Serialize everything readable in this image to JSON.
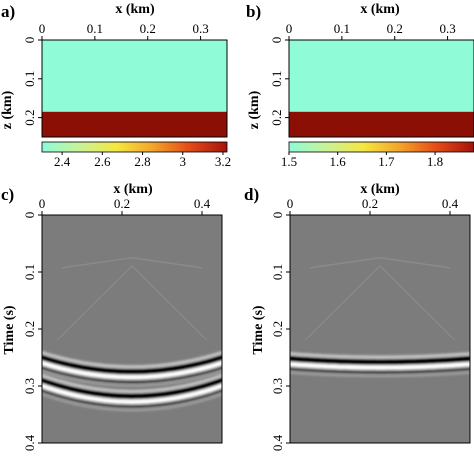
{
  "chart_data": [
    {
      "panel_label": "a)",
      "type": "heatmap",
      "xlabel": "x (km)",
      "ylabel": "z (km)",
      "xticks": [
        "0",
        "0.1",
        "0.2",
        "0.3"
      ],
      "xtick_values": [
        0,
        0.1,
        0.2,
        0.3
      ],
      "yticks": [
        "0",
        "0.1",
        "0.2"
      ],
      "ytick_values": [
        0,
        0.1,
        0.2
      ],
      "xlim": [
        0,
        0.35
      ],
      "ylim": [
        0,
        0.25
      ],
      "layers": [
        {
          "z_top": 0,
          "z_bottom": 0.185,
          "value": 2.3,
          "color": "#8ffbd7"
        },
        {
          "z_top": 0.185,
          "z_bottom": 0.25,
          "value": 3.2,
          "color": "#8c0f06"
        }
      ],
      "colorbar": {
        "range": [
          2.3,
          3.22
        ],
        "ticks": [
          "2.4",
          "2.6",
          "2.8",
          "3",
          "3.2"
        ],
        "tick_values": [
          2.4,
          2.6,
          2.8,
          3.0,
          3.2
        ]
      }
    },
    {
      "panel_label": "b)",
      "type": "heatmap",
      "xlabel": "x (km)",
      "ylabel": "z (km)",
      "xticks": [
        "0",
        "0.1",
        "0.2",
        "0.3"
      ],
      "xtick_values": [
        0,
        0.1,
        0.2,
        0.3
      ],
      "yticks": [
        "0",
        "0.1",
        "0.2"
      ],
      "ytick_values": [
        0,
        0.1,
        0.2
      ],
      "xlim": [
        0,
        0.35
      ],
      "ylim": [
        0,
        0.25
      ],
      "layers": [
        {
          "z_top": 0,
          "z_bottom": 0.185,
          "value": 1.5,
          "color": "#8ffbd7"
        },
        {
          "z_top": 0.185,
          "z_bottom": 0.25,
          "value": 1.88,
          "color": "#8c0f06"
        }
      ],
      "colorbar": {
        "range": [
          1.5,
          1.88
        ],
        "ticks": [
          "1.5",
          "1.6",
          "1.7",
          "1.8"
        ],
        "tick_values": [
          1.5,
          1.6,
          1.7,
          1.8
        ]
      }
    },
    {
      "panel_label": "c)",
      "type": "heatmap",
      "xlabel": "x (km)",
      "ylabel": "Time (s)",
      "xticks": [
        "0",
        "0.2",
        "0.4"
      ],
      "xtick_values": [
        0,
        0.2,
        0.4
      ],
      "yticks": [
        "0",
        "0.1",
        "0.2",
        "0.3",
        "0.4"
      ],
      "ytick_values": [
        0,
        0.1,
        0.2,
        0.3,
        0.4
      ],
      "xlim": [
        0,
        0.45
      ],
      "ylim": [
        0,
        0.4
      ],
      "background": "#7c7c7c",
      "events": [
        {
          "apex_x": 0.225,
          "apex_t": 0.275,
          "edge_t": 0.25
        },
        {
          "apex_x": 0.225,
          "apex_t": 0.318,
          "edge_t": 0.29
        }
      ]
    },
    {
      "panel_label": "d)",
      "type": "heatmap",
      "xlabel": "x (km)",
      "ylabel": "Time (s)",
      "xticks": [
        "0",
        "0.2",
        "0.4"
      ],
      "xtick_values": [
        0,
        0.2,
        0.4
      ],
      "yticks": [
        "0",
        "0.1",
        "0.2",
        "0.3",
        "0.4"
      ],
      "ytick_values": [
        0,
        0.1,
        0.2,
        0.3,
        0.4
      ],
      "xlim": [
        0,
        0.45
      ],
      "ylim": [
        0,
        0.4
      ],
      "background": "#7c7c7c",
      "events": [
        {
          "apex_x": 0.225,
          "apex_t": 0.258,
          "edge_t": 0.252
        }
      ]
    }
  ],
  "colors": {
    "colorbar_stops": [
      "#8ffbd7",
      "#c8f29a",
      "#f4e842",
      "#f3a42a",
      "#e34a18",
      "#a4130a"
    ],
    "wave_black": "#050505",
    "wave_white": "#ffffff"
  }
}
